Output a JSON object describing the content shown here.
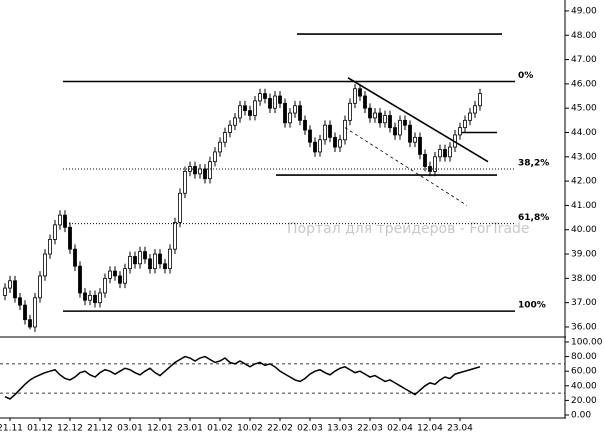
{
  "chart_data": [
    {
      "type": "candlestick",
      "watermark": "Портал для трейдеров - ForTrade",
      "categories": [
        null,
        "21.11",
        null,
        null,
        null,
        null,
        null,
        "01.12",
        null,
        null,
        null,
        null,
        null,
        "12.12",
        null,
        null,
        null,
        null,
        null,
        "21.12",
        null,
        null,
        null,
        null,
        null,
        "03.01",
        null,
        null,
        null,
        null,
        null,
        "12.01",
        null,
        null,
        null,
        null,
        null,
        "23.01",
        null,
        null,
        null,
        null,
        null,
        "01.02",
        null,
        null,
        null,
        null,
        null,
        "10.02",
        null,
        null,
        null,
        null,
        null,
        "22.02",
        null,
        null,
        null,
        null,
        null,
        "02.03",
        null,
        null,
        null,
        null,
        null,
        "13.03",
        null,
        null,
        null,
        null,
        null,
        "22.03",
        null,
        null,
        null,
        null,
        null,
        "02.04",
        null,
        null,
        null,
        null,
        null,
        "12.04",
        null,
        null,
        null,
        null,
        null,
        "23.04",
        null,
        null,
        null,
        null
      ],
      "open": [
        37.3,
        37.6,
        37.9,
        37.2,
        36.9,
        36.3,
        36.0,
        37.2,
        38.1,
        39.0,
        39.6,
        40.2,
        40.6,
        40.1,
        39.2,
        38.5,
        37.4,
        37.1,
        37.3,
        37.0,
        37.4,
        38.0,
        38.3,
        38.1,
        37.8,
        38.4,
        38.9,
        38.6,
        39.1,
        38.8,
        38.4,
        39.0,
        38.6,
        38.4,
        39.2,
        40.3,
        41.5,
        42.4,
        42.6,
        42.3,
        42.5,
        42.1,
        42.8,
        43.2,
        43.6,
        44.0,
        44.3,
        44.6,
        45.1,
        44.9,
        44.7,
        45.3,
        45.6,
        45.4,
        45.0,
        45.5,
        45.2,
        44.4,
        44.8,
        45.1,
        44.5,
        44.1,
        43.6,
        43.2,
        43.7,
        44.3,
        43.8,
        43.4,
        43.7,
        44.5,
        45.2,
        45.8,
        45.5,
        45.0,
        44.6,
        44.8,
        44.4,
        44.7,
        44.2,
        43.9,
        44.5,
        44.3,
        43.6,
        43.8,
        43.1,
        42.6,
        42.4,
        43.0,
        43.3,
        43.0,
        43.4,
        43.9,
        44.2,
        44.5,
        44.8,
        45.1
      ],
      "high": [
        37.8,
        38.1,
        38.1,
        37.4,
        37.1,
        36.5,
        37.4,
        38.3,
        39.2,
        39.8,
        40.4,
        40.8,
        40.8,
        40.3,
        39.4,
        38.7,
        37.6,
        37.5,
        37.5,
        37.6,
        38.2,
        38.5,
        38.5,
        38.3,
        38.6,
        39.1,
        39.1,
        39.3,
        39.3,
        39.0,
        39.2,
        39.2,
        38.8,
        39.4,
        40.5,
        41.7,
        42.6,
        42.8,
        42.8,
        42.7,
        42.7,
        43.0,
        43.4,
        43.8,
        44.2,
        44.5,
        44.8,
        45.3,
        45.3,
        45.1,
        45.5,
        45.8,
        45.8,
        45.6,
        45.7,
        45.7,
        45.4,
        45.0,
        45.3,
        45.3,
        44.7,
        44.3,
        43.8,
        43.9,
        44.5,
        44.5,
        44.0,
        43.9,
        44.7,
        45.4,
        46.0,
        46.0,
        45.7,
        45.2,
        45.0,
        45.0,
        44.9,
        44.9,
        44.4,
        44.7,
        44.7,
        44.5,
        44.0,
        44.0,
        43.3,
        42.8,
        43.2,
        43.5,
        43.5,
        43.6,
        44.1,
        44.4,
        44.7,
        45.0,
        45.3,
        45.8
      ],
      "low": [
        37.1,
        37.4,
        37.0,
        36.7,
        36.1,
        35.9,
        35.8,
        37.0,
        37.9,
        38.8,
        39.4,
        40.0,
        39.9,
        39.0,
        38.3,
        37.2,
        36.9,
        36.9,
        36.8,
        36.8,
        37.2,
        37.8,
        37.9,
        37.6,
        37.6,
        38.2,
        38.4,
        38.4,
        38.6,
        38.2,
        38.2,
        38.4,
        38.2,
        38.2,
        39.0,
        40.1,
        41.3,
        42.2,
        42.1,
        42.1,
        41.9,
        41.9,
        42.6,
        43.0,
        43.4,
        43.8,
        44.1,
        44.4,
        44.7,
        44.5,
        44.5,
        45.1,
        45.2,
        44.8,
        44.8,
        45.0,
        44.2,
        44.2,
        44.6,
        44.3,
        43.9,
        43.4,
        43.0,
        43.0,
        43.5,
        43.6,
        43.2,
        43.2,
        43.5,
        44.3,
        45.0,
        45.3,
        44.8,
        44.4,
        44.4,
        44.2,
        44.2,
        44.0,
        43.7,
        43.7,
        44.1,
        43.4,
        43.4,
        42.9,
        42.4,
        42.2,
        42.2,
        42.8,
        42.8,
        42.8,
        43.2,
        43.7,
        44.0,
        44.3,
        44.6,
        44.9
      ],
      "close": [
        37.6,
        37.9,
        37.2,
        36.9,
        36.3,
        36.0,
        37.2,
        38.1,
        39.0,
        39.6,
        40.2,
        40.6,
        40.1,
        39.2,
        38.5,
        37.4,
        37.1,
        37.3,
        37.0,
        37.4,
        38.0,
        38.3,
        38.1,
        37.8,
        38.4,
        38.9,
        38.6,
        39.1,
        38.8,
        38.4,
        39.0,
        38.6,
        38.4,
        39.2,
        40.3,
        41.5,
        42.4,
        42.6,
        42.3,
        42.5,
        42.1,
        42.8,
        43.2,
        43.6,
        44.0,
        44.3,
        44.6,
        45.1,
        44.9,
        44.7,
        45.3,
        45.6,
        45.4,
        45.0,
        45.5,
        45.2,
        44.4,
        44.8,
        45.1,
        44.5,
        44.1,
        43.6,
        43.2,
        43.7,
        44.3,
        43.8,
        43.4,
        43.7,
        44.5,
        45.2,
        45.8,
        45.5,
        45.0,
        44.6,
        44.8,
        44.4,
        44.7,
        44.2,
        43.9,
        44.5,
        44.3,
        43.6,
        43.8,
        43.1,
        42.6,
        42.4,
        43.0,
        43.3,
        43.0,
        43.4,
        43.9,
        44.2,
        44.5,
        44.8,
        45.1,
        45.6
      ],
      "up_color": "#ffffff",
      "down_color": "#000000",
      "xlim": [
        -1,
        112
      ],
      "ylim": [
        35.67,
        49.45
      ],
      "yticks": [
        {
          "value": 36,
          "label": "36.00"
        },
        {
          "value": 37,
          "label": "37.00"
        },
        {
          "value": 38,
          "label": "38.00"
        },
        {
          "value": 39,
          "label": "39.00"
        },
        {
          "value": 40,
          "label": "40.00"
        },
        {
          "value": 41,
          "label": "41.00"
        },
        {
          "value": 42,
          "label": "42.00"
        },
        {
          "value": 43,
          "label": "43.00"
        },
        {
          "value": 44,
          "label": "44.00"
        },
        {
          "value": 45,
          "label": "45.00"
        },
        {
          "value": 46,
          "label": "46.00"
        },
        {
          "value": 47,
          "label": "47.00"
        },
        {
          "value": 48,
          "label": "48.00"
        },
        {
          "value": 49,
          "label": "49.00"
        }
      ],
      "levels": [
        {
          "label": "0%",
          "value": 46.1,
          "x": [
            11.6,
            102
          ],
          "style": "solid"
        },
        {
          "label": "38,2%",
          "value": 42.5,
          "x": [
            11.6,
            102
          ],
          "style": "dotted"
        },
        {
          "label": "61,8%",
          "value": 40.25,
          "x": [
            11.6,
            102
          ],
          "style": "dotted"
        },
        {
          "label": "100%",
          "value": 36.65,
          "x": [
            11.6,
            102
          ],
          "style": "solid"
        }
      ],
      "lines": [
        {
          "x": [
            58.4,
            99.4
          ],
          "y": [
            48.05,
            48.05
          ],
          "style": "solid"
        },
        {
          "x": [
            54.2,
            98.4
          ],
          "y": [
            42.25,
            42.25
          ],
          "style": "solid"
        },
        {
          "x": [
            91.4,
            98.4
          ],
          "y": [
            44.0,
            44.0
          ],
          "style": "solid"
        },
        {
          "x": [
            68.6,
            96.6
          ],
          "y": [
            46.25,
            42.8
          ],
          "style": "solid"
        },
        {
          "x": [
            68.0,
            92.4
          ],
          "y": [
            44.2,
            41.0
          ],
          "style": "dashed"
        }
      ]
    },
    {
      "type": "line",
      "values": [
        25,
        22,
        28,
        35,
        42,
        48,
        52,
        55,
        58,
        60,
        62,
        55,
        50,
        48,
        52,
        58,
        60,
        55,
        52,
        58,
        62,
        60,
        56,
        60,
        64,
        62,
        58,
        55,
        60,
        64,
        58,
        54,
        60,
        66,
        72,
        76,
        80,
        78,
        74,
        78,
        80,
        76,
        72,
        74,
        78,
        72,
        70,
        74,
        70,
        66,
        70,
        72,
        68,
        70,
        66,
        60,
        56,
        52,
        48,
        46,
        50,
        56,
        60,
        62,
        58,
        55,
        60,
        64,
        66,
        62,
        58,
        60,
        56,
        52,
        54,
        50,
        46,
        48,
        44,
        40,
        36,
        32,
        28,
        34,
        40,
        44,
        42,
        48,
        52,
        50,
        56,
        58,
        60,
        62,
        64,
        66
      ],
      "color": "#000000",
      "xlim": [
        -1,
        112
      ],
      "ylim": [
        -4.1,
        102.7
      ],
      "yticks": [
        {
          "value": 0,
          "label": "0.00"
        },
        {
          "value": 20,
          "label": "20.00"
        },
        {
          "value": 40,
          "label": "40.00"
        },
        {
          "value": 60,
          "label": "60.00"
        },
        {
          "value": 80,
          "label": "80.00"
        },
        {
          "value": 100,
          "label": "100.00"
        }
      ],
      "levels": [
        {
          "value": 70,
          "style": "dashed"
        },
        {
          "value": 30,
          "style": "dashed"
        }
      ]
    }
  ]
}
